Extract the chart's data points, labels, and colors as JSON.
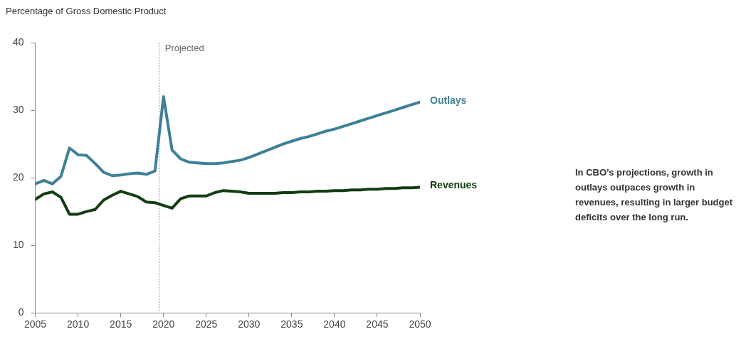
{
  "chart_data": {
    "type": "line",
    "ylabel": "Percentage of Gross Domestic Product",
    "x": [
      2005,
      2006,
      2007,
      2008,
      2009,
      2010,
      2011,
      2012,
      2013,
      2014,
      2015,
      2016,
      2017,
      2018,
      2019,
      2020,
      2021,
      2022,
      2023,
      2024,
      2025,
      2026,
      2027,
      2028,
      2029,
      2030,
      2031,
      2032,
      2033,
      2034,
      2035,
      2036,
      2037,
      2038,
      2039,
      2040,
      2041,
      2042,
      2043,
      2044,
      2045,
      2046,
      2047,
      2048,
      2049,
      2050
    ],
    "series": [
      {
        "name": "Outlays",
        "color": "#3f7f98",
        "values": [
          19.1,
          19.6,
          19.1,
          20.2,
          24.4,
          23.4,
          23.3,
          22.1,
          20.8,
          20.3,
          20.4,
          20.6,
          20.7,
          20.5,
          21.0,
          32.0,
          24.1,
          22.8,
          22.3,
          22.2,
          22.1,
          22.1,
          22.2,
          22.4,
          22.6,
          23.0,
          23.5,
          24.0,
          24.5,
          25.0,
          25.4,
          25.8,
          26.1,
          26.5,
          26.9,
          27.2,
          27.6,
          28.0,
          28.4,
          28.8,
          29.2,
          29.6,
          30.0,
          30.4,
          30.8,
          31.2
        ]
      },
      {
        "name": "Revenues",
        "color": "#123d12",
        "values": [
          16.8,
          17.6,
          17.9,
          17.1,
          14.6,
          14.6,
          15.0,
          15.3,
          16.7,
          17.4,
          18.0,
          17.6,
          17.2,
          16.4,
          16.3,
          15.9,
          15.5,
          16.9,
          17.3,
          17.3,
          17.3,
          17.8,
          18.1,
          18.0,
          17.9,
          17.7,
          17.7,
          17.7,
          17.7,
          17.8,
          17.8,
          17.9,
          17.9,
          18.0,
          18.0,
          18.1,
          18.1,
          18.2,
          18.2,
          18.3,
          18.3,
          18.4,
          18.4,
          18.5,
          18.5,
          18.6
        ]
      }
    ],
    "xlim": [
      2005,
      2050
    ],
    "xticks": [
      2005,
      2010,
      2015,
      2020,
      2025,
      2030,
      2035,
      2040,
      2045,
      2050
    ],
    "ylim": [
      0,
      40
    ],
    "yticks": [
      0,
      10,
      20,
      30,
      40
    ],
    "ref_lines": [
      {
        "axis": "x",
        "value": 2019.5,
        "label": "Projected",
        "color": "#999999",
        "line_style": "dotted"
      }
    ],
    "annotations": [
      "In CBO’s projections, growth in outlays outpaces growth in revenues, resulting in larger budget deficits over the long run."
    ],
    "grid": false,
    "legend": false,
    "marker": "none",
    "line_style": "solid"
  }
}
